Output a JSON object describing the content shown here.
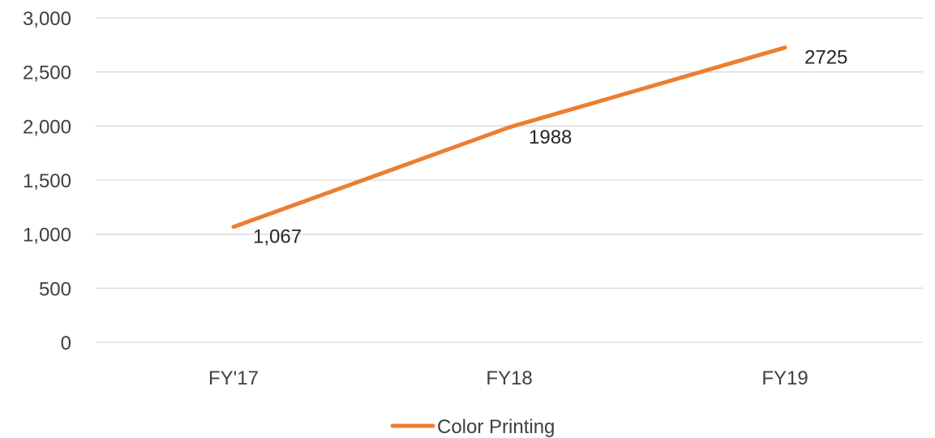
{
  "chart_data": {
    "type": "line",
    "title": "",
    "xlabel": "",
    "ylabel": "",
    "categories": [
      "FY'17",
      "FY18",
      "FY19"
    ],
    "y_ticks": [
      "0",
      "500",
      "1,000",
      "1,500",
      "2,000",
      "2,500",
      "3,000"
    ],
    "ylim": [
      0,
      3000
    ],
    "grid": true,
    "legend_position": "bottom",
    "series": [
      {
        "name": "Color Printing",
        "color": "#ed7d31",
        "values": [
          1067,
          1988,
          2725
        ],
        "data_labels": [
          "1,067",
          "1988",
          "2725"
        ]
      }
    ]
  }
}
